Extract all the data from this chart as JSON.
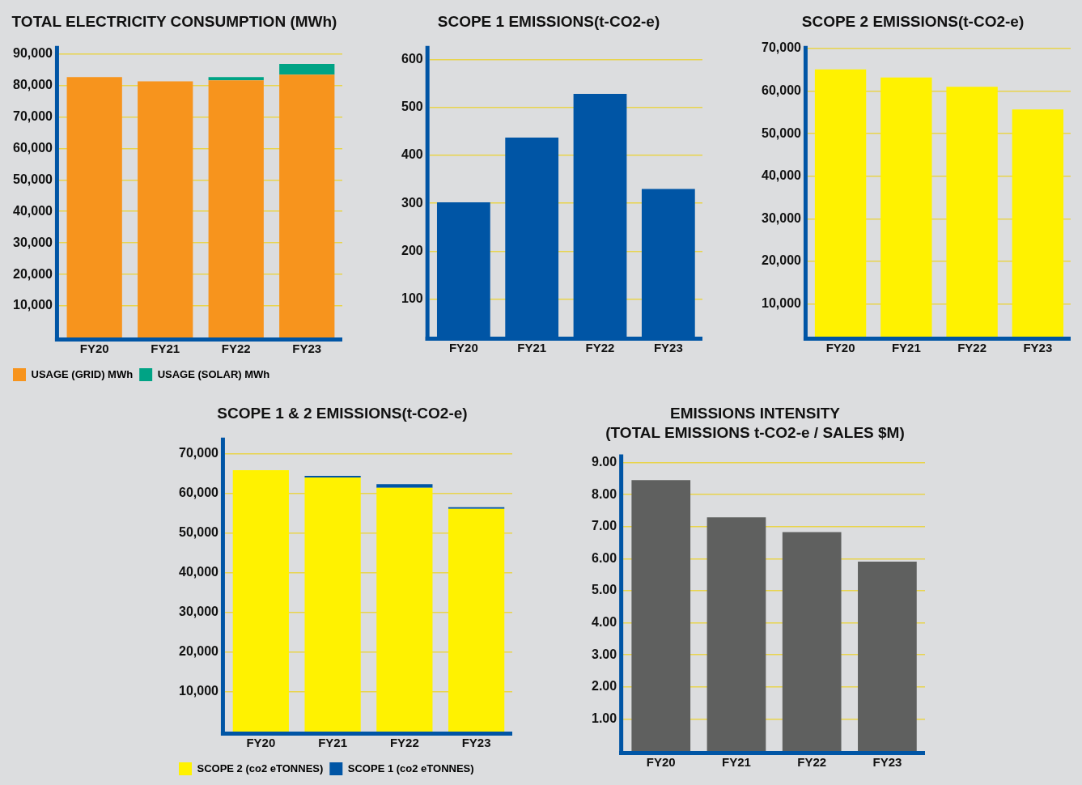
{
  "chart_data": [
    {
      "type": "bar",
      "title": "TOTAL ELECTRICITY CONSUMPTION (MWh)",
      "categories": [
        "FY20",
        "FY21",
        "FY22",
        "FY23"
      ],
      "stacked": true,
      "series": [
        {
          "name": "USAGE (GRID) MWh",
          "color": "#f7941d",
          "values": [
            82600,
            81300,
            81600,
            83400
          ]
        },
        {
          "name": "USAGE (SOLAR) MWh",
          "color": "#00a385",
          "values": [
            null,
            null,
            1000,
            3400
          ]
        }
      ],
      "ylim": [
        0,
        92500
      ],
      "yticks": [
        {
          "value": 10000,
          "label": "10,000"
        },
        {
          "value": 20000,
          "label": "20,000"
        },
        {
          "value": 30000,
          "label": "30,000"
        },
        {
          "value": 40000,
          "label": "40,000"
        },
        {
          "value": 50000,
          "label": "50,000"
        },
        {
          "value": 60000,
          "label": "60,000"
        },
        {
          "value": 70000,
          "label": "70,000"
        },
        {
          "value": 80000,
          "label": "80,000"
        },
        {
          "value": 90000,
          "label": "90,000"
        }
      ],
      "grid": "y",
      "legend": "bottom"
    },
    {
      "type": "bar",
      "title": "SCOPE 1 EMISSIONS(t-CO2-e)",
      "categories": [
        "FY20",
        "FY21",
        "FY22",
        "FY23"
      ],
      "values": [
        302,
        437,
        528,
        330
      ],
      "color": "#0055a5",
      "ylim": [
        22,
        628
      ],
      "yticks": [
        100,
        200,
        300,
        400,
        500,
        600
      ],
      "grid": "y"
    },
    {
      "type": "bar",
      "title": "SCOPE 2 EMISSIONS(t-CO2-e)",
      "categories": [
        "FY20",
        "FY21",
        "FY22",
        "FY23"
      ],
      "values": [
        65100,
        63200,
        61000,
        55700
      ],
      "color": "#fff200",
      "ylim": [
        2300,
        70600
      ],
      "yticks": [
        {
          "value": 10000,
          "label": "10,000"
        },
        {
          "value": 20000,
          "label": "20,000"
        },
        {
          "value": 30000,
          "label": "30,000"
        },
        {
          "value": 40000,
          "label": "40,000"
        },
        {
          "value": 50000,
          "label": "50,000"
        },
        {
          "value": 60000,
          "label": "60,000"
        },
        {
          "value": 70000,
          "label": "70,000"
        }
      ],
      "grid": "y"
    },
    {
      "type": "bar",
      "title": "SCOPE 1 & 2 EMISSIONS(t-CO2-e)",
      "categories": [
        "FY20",
        "FY21",
        "FY22",
        "FY23"
      ],
      "stacked": true,
      "series": [
        {
          "name": "SCOPE 2 (co2 eTONNES)",
          "color": "#fff200",
          "values": [
            65800,
            64000,
            61400,
            56100
          ]
        },
        {
          "name": "SCOPE 1 (co2 eTONNES)",
          "color": "#0055a5",
          "values": [
            null,
            400,
            900,
            400
          ]
        }
      ],
      "ylim": [
        0,
        74000
      ],
      "yticks": [
        {
          "value": 10000,
          "label": "10,000"
        },
        {
          "value": 20000,
          "label": "20,000"
        },
        {
          "value": 30000,
          "label": "30,000"
        },
        {
          "value": 40000,
          "label": "40,000"
        },
        {
          "value": 50000,
          "label": "50,000"
        },
        {
          "value": 60000,
          "label": "60,000"
        },
        {
          "value": 70000,
          "label": "70,000"
        }
      ],
      "grid": "y",
      "legend": "bottom"
    },
    {
      "type": "bar",
      "title": "EMISSIONS INTENSITY",
      "subtitle": "(TOTAL EMISSIONS t-CO2-e / SALES $M)",
      "categories": [
        "FY20",
        "FY21",
        "FY22",
        "FY23"
      ],
      "values": [
        8.45,
        7.29,
        6.83,
        5.91
      ],
      "color": "#5f605f",
      "ylim": [
        0,
        9.25
      ],
      "yticks": [
        {
          "value": 1,
          "label": "1.00"
        },
        {
          "value": 2,
          "label": "2.00"
        },
        {
          "value": 3,
          "label": "3.00"
        },
        {
          "value": 4,
          "label": "4.00"
        },
        {
          "value": 5,
          "label": "5.00"
        },
        {
          "value": 6,
          "label": "6.00"
        },
        {
          "value": 7,
          "label": "7.00"
        },
        {
          "value": 8,
          "label": "8.00"
        },
        {
          "value": 9,
          "label": "9.00"
        }
      ],
      "grid": "y"
    }
  ]
}
